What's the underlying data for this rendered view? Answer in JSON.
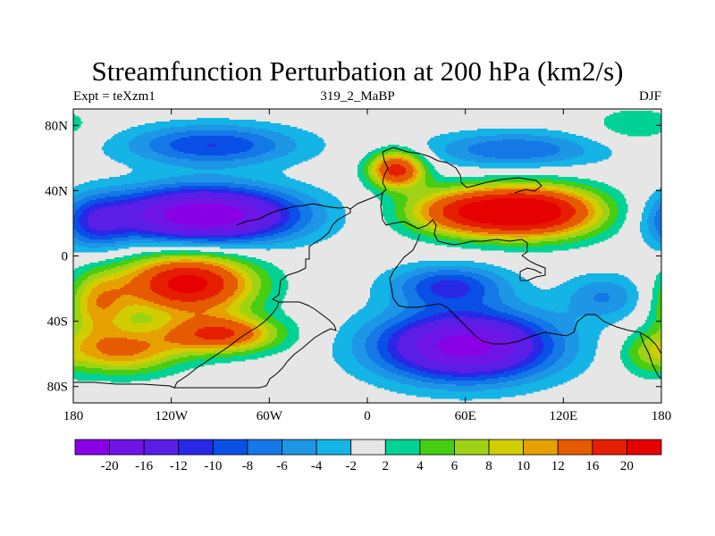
{
  "title": "Streamfunction Perturbation at 200 hPa (km2/s)",
  "subtitle_left": "Expt = teXzm1",
  "subtitle_center": "319_2_MaBP",
  "subtitle_right": "DJF",
  "map": {
    "lon_range": [
      -180,
      180
    ],
    "lat_range": [
      -90,
      90
    ],
    "lat_ticks": [
      {
        "value": 80,
        "label": "80N"
      },
      {
        "value": 40,
        "label": "40N"
      },
      {
        "value": 0,
        "label": "0"
      },
      {
        "value": -40,
        "label": "40S"
      },
      {
        "value": -80,
        "label": "80S"
      }
    ],
    "lon_ticks": [
      {
        "value": -180,
        "label": "180"
      },
      {
        "value": -120,
        "label": "120W"
      },
      {
        "value": -60,
        "label": "60W"
      },
      {
        "value": 0,
        "label": "0"
      },
      {
        "value": 60,
        "label": "60E"
      },
      {
        "value": 120,
        "label": "120E"
      },
      {
        "value": 180,
        "label": "180"
      }
    ],
    "features": [
      {
        "type": "high",
        "lon": 100,
        "lat": 27,
        "peak": 24,
        "spread_lon": 30,
        "spread_lat": 11
      },
      {
        "type": "high",
        "lon": 55,
        "lat": 27,
        "peak": 12,
        "spread_lon": 25,
        "spread_lat": 10
      },
      {
        "type": "high",
        "lon": 18,
        "lat": 53,
        "peak": 18,
        "spread_lon": 12,
        "spread_lat": 8
      },
      {
        "type": "high",
        "lon": -110,
        "lat": -17,
        "peak": 22,
        "spread_lon": 28,
        "spread_lat": 13
      },
      {
        "type": "high",
        "lon": -90,
        "lat": -48,
        "peak": 16,
        "spread_lon": 25,
        "spread_lat": 8
      },
      {
        "type": "high",
        "lon": -150,
        "lat": -58,
        "peak": 12,
        "spread_lon": 25,
        "spread_lat": 10
      },
      {
        "type": "high",
        "lon": -165,
        "lat": -30,
        "peak": 10,
        "spread_lon": 14,
        "spread_lat": 14
      },
      {
        "type": "high",
        "lon": 165,
        "lat": 80,
        "peak": 4,
        "spread_lon": 20,
        "spread_lat": 8
      },
      {
        "type": "high",
        "lon": 170,
        "lat": -60,
        "peak": 4,
        "spread_lon": 12,
        "spread_lat": 10
      },
      {
        "type": "low",
        "lon": -100,
        "lat": 25,
        "peak": -24,
        "spread_lon": 40,
        "spread_lat": 12
      },
      {
        "type": "low",
        "lon": -95,
        "lat": 68,
        "peak": -10,
        "spread_lon": 38,
        "spread_lat": 9
      },
      {
        "type": "low",
        "lon": 60,
        "lat": -55,
        "peak": -22,
        "spread_lon": 38,
        "spread_lat": 15
      },
      {
        "type": "low",
        "lon": 50,
        "lat": -18,
        "peak": -10,
        "spread_lon": 25,
        "spread_lat": 9
      },
      {
        "type": "low",
        "lon": 90,
        "lat": 65,
        "peak": -8,
        "spread_lon": 38,
        "spread_lat": 8
      },
      {
        "type": "low",
        "lon": 145,
        "lat": -25,
        "peak": -6,
        "spread_lon": 18,
        "spread_lat": 10
      },
      {
        "type": "low",
        "lon": -168,
        "lat": 20,
        "peak": -8,
        "spread_lon": 15,
        "spread_lat": 12
      }
    ]
  },
  "colorbar": {
    "levels": [
      -20,
      -16,
      -12,
      -10,
      -8,
      -6,
      -4,
      -2,
      2,
      4,
      6,
      8,
      10,
      12,
      16,
      20
    ],
    "labels": [
      "-20",
      "-16",
      "-12",
      "-10",
      "-8",
      "-6",
      "-4",
      "-2",
      "2",
      "4",
      "6",
      "8",
      "10",
      "12",
      "16",
      "20"
    ],
    "colors": [
      "#8a00e6",
      "#6e14e6",
      "#5a1ee6",
      "#2828e6",
      "#0a50e6",
      "#1478e6",
      "#1e96e6",
      "#14b4e6",
      "#e6e6e6",
      "#00d296",
      "#46cd14",
      "#a0d214",
      "#d2cd00",
      "#e6a000",
      "#e65a00",
      "#e61e00",
      "#e60000"
    ]
  },
  "coastline_color": "#000000"
}
